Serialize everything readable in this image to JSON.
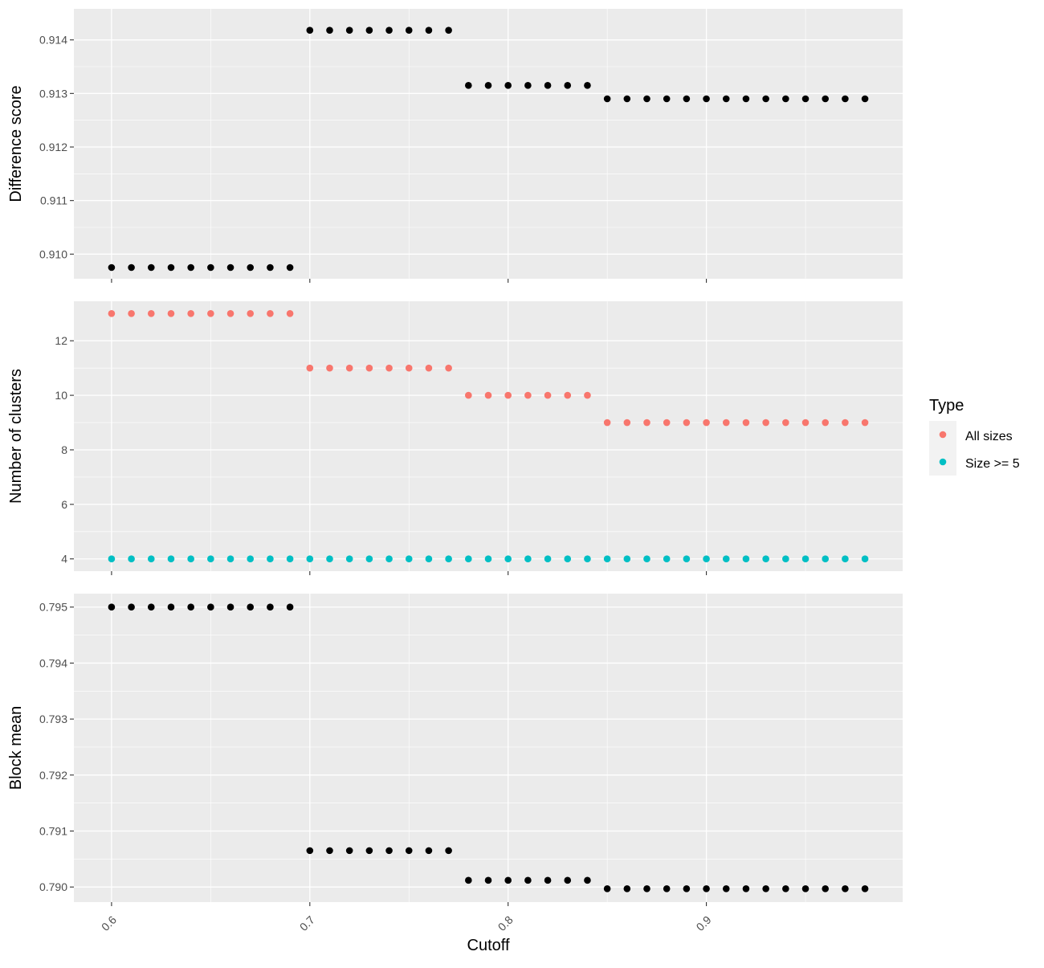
{
  "chart_data": [
    {
      "type": "scatter",
      "panel": "top",
      "title": "",
      "xlabel": "",
      "ylabel": "Difference score",
      "x": [
        0.6,
        0.61,
        0.62,
        0.63,
        0.64,
        0.65,
        0.66,
        0.67,
        0.68,
        0.69,
        0.7,
        0.71,
        0.72,
        0.73,
        0.74,
        0.75,
        0.76,
        0.77,
        0.78,
        0.79,
        0.8,
        0.81,
        0.82,
        0.83,
        0.84,
        0.85,
        0.86,
        0.87,
        0.88,
        0.89,
        0.9,
        0.91,
        0.92,
        0.93,
        0.94,
        0.95,
        0.96,
        0.97,
        0.98
      ],
      "series": [
        {
          "color": "#000000",
          "values": [
            0.90975,
            0.90975,
            0.90975,
            0.90975,
            0.90975,
            0.90975,
            0.90975,
            0.90975,
            0.90975,
            0.90975,
            0.91418,
            0.91418,
            0.91418,
            0.91418,
            0.91418,
            0.91418,
            0.91418,
            0.91418,
            0.91315,
            0.91315,
            0.91315,
            0.91315,
            0.91315,
            0.91315,
            0.91315,
            0.9129,
            0.9129,
            0.9129,
            0.9129,
            0.9129,
            0.9129,
            0.9129,
            0.9129,
            0.9129,
            0.9129,
            0.9129,
            0.9129,
            0.9129,
            0.9129
          ]
        }
      ],
      "ylim": [
        0.90954,
        0.91458
      ],
      "yticks": [
        0.91,
        0.911,
        0.912,
        0.913,
        0.914
      ],
      "ytick_labels": [
        "0.910",
        "0.911",
        "0.912",
        "0.913",
        "0.914"
      ],
      "grid": true
    },
    {
      "type": "scatter",
      "panel": "middle",
      "title": "",
      "xlabel": "",
      "ylabel": "Number of clusters",
      "x": [
        0.6,
        0.61,
        0.62,
        0.63,
        0.64,
        0.65,
        0.66,
        0.67,
        0.68,
        0.69,
        0.7,
        0.71,
        0.72,
        0.73,
        0.74,
        0.75,
        0.76,
        0.77,
        0.78,
        0.79,
        0.8,
        0.81,
        0.82,
        0.83,
        0.84,
        0.85,
        0.86,
        0.87,
        0.88,
        0.89,
        0.9,
        0.91,
        0.92,
        0.93,
        0.94,
        0.95,
        0.96,
        0.97,
        0.98
      ],
      "series": [
        {
          "name": "All sizes",
          "color": "#F8766D",
          "values": [
            13,
            13,
            13,
            13,
            13,
            13,
            13,
            13,
            13,
            13,
            11,
            11,
            11,
            11,
            11,
            11,
            11,
            11,
            10,
            10,
            10,
            10,
            10,
            10,
            10,
            9,
            9,
            9,
            9,
            9,
            9,
            9,
            9,
            9,
            9,
            9,
            9,
            9,
            9
          ]
        },
        {
          "name": "Size >= 5",
          "color": "#00BFC4",
          "values": [
            4,
            4,
            4,
            4,
            4,
            4,
            4,
            4,
            4,
            4,
            4,
            4,
            4,
            4,
            4,
            4,
            4,
            4,
            4,
            4,
            4,
            4,
            4,
            4,
            4,
            4,
            4,
            4,
            4,
            4,
            4,
            4,
            4,
            4,
            4,
            4,
            4,
            4,
            4
          ]
        }
      ],
      "ylim": [
        3.55,
        13.45
      ],
      "yticks": [
        4,
        6,
        8,
        10,
        12
      ],
      "ytick_labels": [
        "4",
        "6",
        "8",
        "10",
        "12"
      ],
      "grid": true,
      "legend": {
        "title": "Type",
        "placement": "right",
        "items": [
          "All sizes",
          "Size >= 5"
        ]
      }
    },
    {
      "type": "scatter",
      "panel": "bottom",
      "title": "",
      "xlabel": "Cutoff",
      "ylabel": "Block mean",
      "x": [
        0.6,
        0.61,
        0.62,
        0.63,
        0.64,
        0.65,
        0.66,
        0.67,
        0.68,
        0.69,
        0.7,
        0.71,
        0.72,
        0.73,
        0.74,
        0.75,
        0.76,
        0.77,
        0.78,
        0.79,
        0.8,
        0.81,
        0.82,
        0.83,
        0.84,
        0.85,
        0.86,
        0.87,
        0.88,
        0.89,
        0.9,
        0.91,
        0.92,
        0.93,
        0.94,
        0.95,
        0.96,
        0.97,
        0.98
      ],
      "series": [
        {
          "color": "#000000",
          "values": [
            0.795,
            0.795,
            0.795,
            0.795,
            0.795,
            0.795,
            0.795,
            0.795,
            0.795,
            0.795,
            0.79065,
            0.79065,
            0.79065,
            0.79065,
            0.79065,
            0.79065,
            0.79065,
            0.79065,
            0.79012,
            0.79012,
            0.79012,
            0.79012,
            0.79012,
            0.79012,
            0.79012,
            0.78997,
            0.78997,
            0.78997,
            0.78997,
            0.78997,
            0.78997,
            0.78997,
            0.78997,
            0.78997,
            0.78997,
            0.78997,
            0.78997,
            0.78997,
            0.78997
          ]
        }
      ],
      "ylim": [
        0.78973,
        0.79524
      ],
      "yticks": [
        0.79,
        0.791,
        0.792,
        0.793,
        0.794,
        0.795
      ],
      "ytick_labels": [
        "0.790",
        "0.791",
        "0.792",
        "0.793",
        "0.794",
        "0.795"
      ],
      "grid": true
    }
  ],
  "x_axis": {
    "label": "Cutoff",
    "xlim": [
      0.581,
      0.999
    ],
    "ticks": [
      0.6,
      0.7,
      0.8,
      0.9
    ],
    "tick_labels": [
      "0.6",
      "0.7",
      "0.8",
      "0.9"
    ]
  },
  "colors": {
    "panel_background": "#EBEBEB",
    "grid_line": "#FFFFFF",
    "axis_text": "#4D4D4D",
    "all_sizes": "#F8766D",
    "size_ge_5": "#00BFC4"
  }
}
